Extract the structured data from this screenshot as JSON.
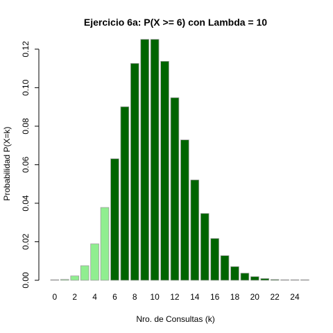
{
  "chart_data": {
    "type": "bar",
    "title": "Ejercicio 6a: P(X >= 6) con Lambda = 10",
    "xlabel": "Nro. de Consultas (k)",
    "ylabel": "Probabilidad P(X=k)",
    "ylim": [
      0,
      0.125
    ],
    "yticks": [
      "0.00",
      "0.02",
      "0.04",
      "0.06",
      "0.08",
      "0.10",
      "0.12"
    ],
    "xticks": [
      "0",
      "2",
      "4",
      "6",
      "8",
      "10",
      "12",
      "14",
      "16",
      "18",
      "20",
      "22",
      "24"
    ],
    "categories": [
      0,
      1,
      2,
      3,
      4,
      5,
      6,
      7,
      8,
      9,
      10,
      11,
      12,
      13,
      14,
      15,
      16,
      17,
      18,
      19,
      20,
      21,
      22,
      23,
      24,
      25
    ],
    "values": [
      4.54e-05,
      0.000454,
      0.00227,
      0.00757,
      0.0189,
      0.0378,
      0.0631,
      0.0901,
      0.1126,
      0.1251,
      0.1251,
      0.1137,
      0.0948,
      0.0729,
      0.0521,
      0.0347,
      0.0217,
      0.0128,
      0.0071,
      0.0037,
      0.0019,
      0.0009,
      0.0004,
      0.0002,
      0.0001,
      4e-05
    ],
    "highlight_from": 6,
    "colors": {
      "highlight": "#006400",
      "base": "#90ee90",
      "border": "#9e9e9e"
    }
  }
}
